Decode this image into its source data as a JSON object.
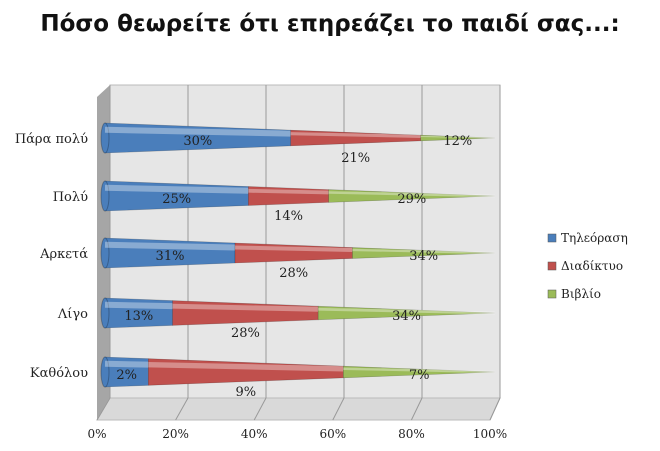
{
  "chart_data": {
    "type": "bar",
    "orientation": "horizontal",
    "stacking": "percent",
    "style": "3d-cone",
    "title": "Πόσο θεωρείτε ότι επηρεάζει το παιδί σας...:",
    "categories": [
      "Πάρα πολύ",
      "Πολύ",
      "Αρκετά",
      "Λίγο",
      "Καθόλου"
    ],
    "series": [
      {
        "name": "Τηλεόραση",
        "color": "#4a7ebb",
        "values": [
          30,
          25,
          31,
          13,
          2
        ],
        "labels": [
          "30%",
          "25%",
          "31%",
          "13%",
          "2%"
        ]
      },
      {
        "name": "Διαδίκτυο",
        "color": "#c0504d",
        "values": [
          21,
          14,
          28,
          28,
          9
        ],
        "labels": [
          "21%",
          "14%",
          "28%",
          "28%",
          "9%"
        ]
      },
      {
        "name": "Βιβλίο",
        "color": "#9bbb59",
        "values": [
          12,
          29,
          34,
          34,
          7
        ],
        "labels": [
          "12%",
          "29%",
          "34%",
          "34%",
          "7%"
        ]
      }
    ],
    "xticks": [
      "0%",
      "20%",
      "40%",
      "60%",
      "80%",
      "100%"
    ],
    "xlim": [
      0,
      100
    ],
    "grid": true,
    "legend": "right"
  }
}
